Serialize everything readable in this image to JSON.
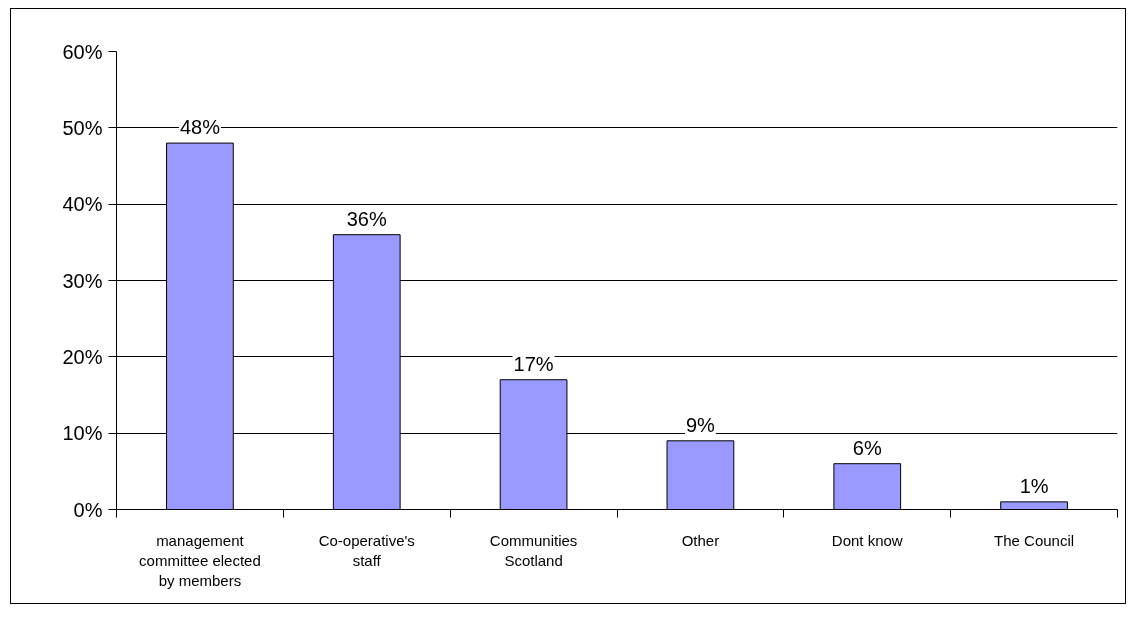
{
  "chart_data": {
    "type": "bar",
    "categories": [
      "management committee elected by members",
      "Co-operative's staff",
      "Communities Scotland",
      "Other",
      "Dont know",
      "The Council"
    ],
    "values": [
      48,
      36,
      17,
      9,
      6,
      1
    ],
    "value_labels": [
      "48%",
      "36%",
      "17%",
      "9%",
      "6%",
      "1%"
    ],
    "color": "#9999ff",
    "ylim": [
      0,
      60
    ],
    "yticks": [
      {
        "value": 0,
        "label": "0%"
      },
      {
        "value": 10,
        "label": "10%"
      },
      {
        "value": 20,
        "label": "20%"
      },
      {
        "value": 30,
        "label": "30%"
      },
      {
        "value": 40,
        "label": "40%"
      },
      {
        "value": 50,
        "label": "50%"
      },
      {
        "value": 60,
        "label": "60%"
      }
    ],
    "grid": "y"
  }
}
